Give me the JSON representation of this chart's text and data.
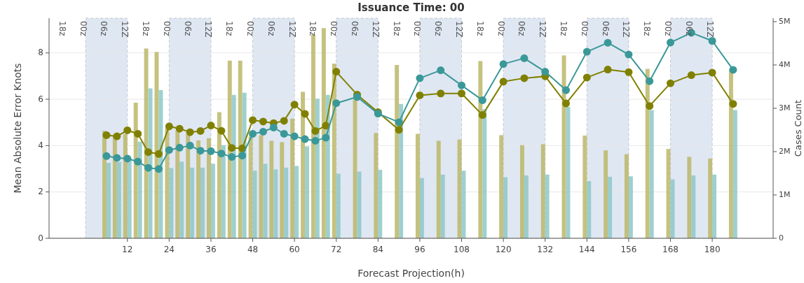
{
  "chart_data": {
    "type": "line",
    "title": "Issuance Time: 00",
    "xlabel": "Forecast Projection(h)",
    "ylabel": "Mean Absolute Error Knots",
    "y2label": "Cases Count",
    "x": [
      6,
      9,
      12,
      15,
      18,
      21,
      24,
      27,
      30,
      33,
      36,
      39,
      42,
      45,
      48,
      51,
      54,
      57,
      60,
      63,
      66,
      69,
      72,
      78,
      84,
      90,
      96,
      102,
      108,
      114,
      120,
      126,
      132,
      138,
      144,
      150,
      156,
      162,
      168,
      174,
      180,
      186
    ],
    "series": [
      {
        "type": "bar",
        "axis": "y2",
        "color": "#bcb86a",
        "values": [
          2480000,
          2350000,
          2410000,
          3130000,
          4380000,
          4300000,
          2540000,
          2490000,
          2410000,
          2260000,
          2310000,
          2910000,
          4100000,
          4100000,
          2350000,
          2380000,
          2250000,
          2220000,
          2760000,
          3380000,
          4700000,
          4850000,
          4030000,
          3210000,
          2430000,
          4000000,
          2410000,
          2250000,
          2280000,
          4090000,
          2380000,
          2150000,
          2170000,
          4220000,
          2370000,
          2030000,
          1940000,
          3910000,
          2060000,
          1880000,
          1840000,
          3900000
        ]
      },
      {
        "type": "bar",
        "axis": "y2",
        "color": "#8fc8c8",
        "values": [
          1740000,
          1760000,
          1850000,
          2230000,
          3460000,
          3420000,
          1620000,
          1770000,
          1630000,
          1630000,
          1720000,
          2150000,
          3310000,
          3360000,
          1560000,
          1720000,
          1590000,
          1630000,
          1670000,
          2120000,
          3220000,
          3310000,
          1490000,
          1540000,
          1580000,
          3100000,
          1390000,
          1470000,
          1560000,
          2980000,
          1410000,
          1450000,
          1470000,
          3030000,
          1320000,
          1420000,
          1430000,
          2960000,
          1360000,
          1450000,
          1470000,
          2960000
        ]
      },
      {
        "color": "#808000",
        "values": [
          4.45,
          4.4,
          4.66,
          4.51,
          3.72,
          3.64,
          4.83,
          4.73,
          4.58,
          4.63,
          4.87,
          4.64,
          3.9,
          3.88,
          5.1,
          5.04,
          4.97,
          5.07,
          5.77,
          5.37,
          4.63,
          4.86,
          7.19,
          6.2,
          5.44,
          4.68,
          6.17,
          6.25,
          6.25,
          5.32,
          6.76,
          6.91,
          6.99,
          5.82,
          6.94,
          7.28,
          7.17,
          5.71,
          6.69,
          7.04,
          7.15,
          5.8
        ]
      },
      {
        "color": "#3a9898",
        "values": [
          3.55,
          3.47,
          3.44,
          3.31,
          3.04,
          2.99,
          3.81,
          3.91,
          4.0,
          3.78,
          3.76,
          3.66,
          3.51,
          3.57,
          4.51,
          4.6,
          4.78,
          4.51,
          4.4,
          4.28,
          4.21,
          4.34,
          5.83,
          6.1,
          5.38,
          5.01,
          6.91,
          7.25,
          6.6,
          5.96,
          7.52,
          7.77,
          7.19,
          6.39,
          8.05,
          8.44,
          7.93,
          6.78,
          8.45,
          8.87,
          8.52,
          7.27
        ]
      }
    ],
    "xlim": [
      -10.5,
      197.5
    ],
    "xticks": [
      12,
      24,
      36,
      48,
      60,
      72,
      84,
      96,
      108,
      120,
      132,
      144,
      156,
      168,
      180
    ],
    "annotations": [
      "18z",
      "00z",
      "06z",
      "12Z",
      "18z",
      "00z",
      "06z",
      "12Z",
      "18z",
      "00z",
      "06z",
      "12Z",
      "18z",
      "00z",
      "06z",
      "12Z",
      "18z",
      "00z",
      "06z",
      "12Z",
      "18z",
      "00z",
      "06z",
      "12Z",
      "18z",
      "00z",
      "06z",
      "12Z",
      "18z",
      "00z",
      "06z",
      "12Z"
    ],
    "ylim": [
      0,
      9.5
    ],
    "yticks": [
      0,
      2,
      4,
      6,
      8
    ],
    "y2lim": [
      0,
      5080000
    ],
    "y2ticks": [
      0,
      {
        "value": 1000000,
        "label": "1M"
      },
      {
        "value": 2000000,
        "label": "2M"
      },
      {
        "value": 3000000,
        "label": "3M"
      },
      {
        "value": 4000000,
        "label": "4M"
      },
      {
        "value": 5000000,
        "label": "5M"
      }
    ],
    "bands": [
      {
        "axis": "x",
        "from": 0,
        "to": 12,
        "color": "#dfe7f2"
      },
      {
        "axis": "x",
        "from": 24,
        "to": 36,
        "color": "#dfe7f2"
      },
      {
        "axis": "x",
        "from": 48,
        "to": 60,
        "color": "#dfe7f2"
      },
      {
        "axis": "x",
        "from": 72,
        "to": 84,
        "color": "#dfe7f2"
      },
      {
        "axis": "x",
        "from": 96,
        "to": 108,
        "color": "#dfe7f2"
      },
      {
        "axis": "x",
        "from": 120,
        "to": 132,
        "color": "#dfe7f2"
      },
      {
        "axis": "x",
        "from": 144,
        "to": 156,
        "color": "#dfe7f2"
      },
      {
        "axis": "x",
        "from": 168,
        "to": 180,
        "color": "#dfe7f2"
      }
    ],
    "grid": "y",
    "marker": "circle",
    "line_style": "solid"
  }
}
